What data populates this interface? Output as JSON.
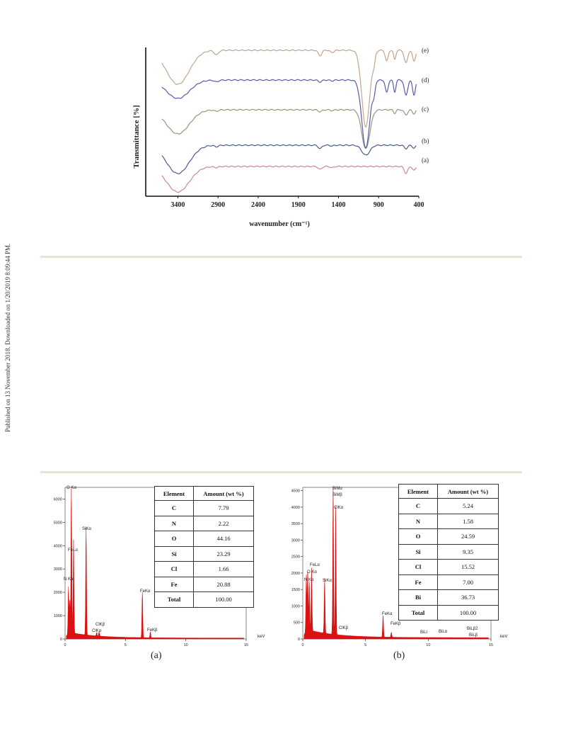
{
  "side_note": "Published on 13 November 2018. Downloaded on 1/20/2019 8:09:44 PM.",
  "ftir": {
    "chart_data": {
      "type": "line",
      "xlabel": "wavenumber (cm⁻¹)",
      "ylabel": "Transmittance [%]",
      "xlim": [
        3800,
        400
      ],
      "x_ticks": [
        3400,
        2900,
        2400,
        1900,
        1400,
        900,
        400
      ],
      "series": [
        {
          "name": "(a)",
          "color": "#c98a8a"
        },
        {
          "name": "(b)",
          "color": "#4a5a8e"
        },
        {
          "name": "(c)",
          "color": "#8f9a7a"
        },
        {
          "name": "(d)",
          "color": "#5a5aa8"
        },
        {
          "name": "(e)",
          "color": "#c0a58e"
        }
      ]
    }
  },
  "eds_a": {
    "label": "(a)",
    "chart_data": {
      "type": "bar",
      "xlabel": "keV",
      "xlim": [
        0,
        15
      ],
      "ylim": [
        0,
        6500
      ],
      "x_ticks": [
        0,
        5,
        10,
        15
      ],
      "y_ticks": [
        0,
        1000,
        2000,
        3000,
        4000,
        5000,
        6000
      ],
      "peaks": [
        {
          "x": 0.28,
          "y": 2000
        },
        {
          "x": 0.39,
          "y": 1400
        },
        {
          "x": 0.52,
          "y": 6200
        },
        {
          "x": 0.7,
          "y": 4000
        },
        {
          "x": 1.74,
          "y": 4600
        },
        {
          "x": 2.62,
          "y": 150
        },
        {
          "x": 2.82,
          "y": 180
        },
        {
          "x": 6.4,
          "y": 1950
        },
        {
          "x": 7.06,
          "y": 250
        }
      ],
      "peak_labels": [
        "O Kα",
        "FeLα",
        "N Kα",
        "SiKα",
        "ClKβ",
        "ClKα",
        "FeKα",
        "FeKβ"
      ]
    },
    "table": {
      "headers": [
        "Element",
        "Amount (wt %)"
      ],
      "rows": [
        [
          "C",
          "7.79"
        ],
        [
          "N",
          "2.22"
        ],
        [
          "O",
          "44.16"
        ],
        [
          "Si",
          "23.29"
        ],
        [
          "Cl",
          "1.66"
        ],
        [
          "Fe",
          "20.88"
        ],
        [
          "Total",
          "100.00"
        ]
      ]
    }
  },
  "eds_b": {
    "label": "(b)",
    "chart_data": {
      "type": "bar",
      "xlabel": "keV",
      "xlim": [
        0,
        15
      ],
      "ylim": [
        0,
        4600
      ],
      "x_ticks": [
        0,
        5,
        10,
        15
      ],
      "y_ticks": [
        0,
        500,
        1000,
        1500,
        2000,
        2500,
        3000,
        3500,
        4000,
        4500
      ],
      "peaks": [
        {
          "x": 0.28,
          "y": 1700
        },
        {
          "x": 0.39,
          "y": 1800
        },
        {
          "x": 0.52,
          "y": 1500
        },
        {
          "x": 0.7,
          "y": 1900
        },
        {
          "x": 1.74,
          "y": 1650
        },
        {
          "x": 2.42,
          "y": 4500
        },
        {
          "x": 2.62,
          "y": 3900
        },
        {
          "x": 6.4,
          "y": 650
        },
        {
          "x": 7.06,
          "y": 150
        }
      ],
      "peak_labels": [
        "BiMα",
        "BiMβ",
        "ClKα",
        "FeLα",
        "O Kα",
        "N Kα",
        "SiKα",
        "ClKβ",
        "FeKα",
        "FeKβ",
        "BiLl",
        "BiLα",
        "BiLβ2",
        "BiLβ"
      ]
    },
    "table": {
      "headers": [
        "Element",
        "Amount (wt %)"
      ],
      "rows": [
        [
          "C",
          "5.24"
        ],
        [
          "N",
          "1.58"
        ],
        [
          "O",
          "24.59"
        ],
        [
          "Si",
          "9.35"
        ],
        [
          "Cl",
          "15.52"
        ],
        [
          "Fe",
          "7.00"
        ],
        [
          "Bi",
          "36.73"
        ],
        [
          "Total",
          "100.00"
        ]
      ]
    }
  }
}
